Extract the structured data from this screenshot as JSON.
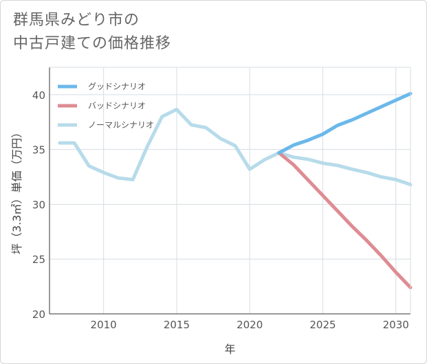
{
  "title_line1": "群馬県みどり市の",
  "title_line2": "中古戸建ての価格推移",
  "chart_data": {
    "type": "line",
    "xlabel": "年",
    "ylabel": "坪（3.3㎡）単価（万円）",
    "xlim": [
      2006.3,
      2031
    ],
    "ylim": [
      20,
      42.5
    ],
    "xticks": [
      2010,
      2015,
      2020,
      2025,
      2030
    ],
    "yticks": [
      20,
      25,
      30,
      35,
      40
    ],
    "grid": true,
    "legend_position": "top-left",
    "series": [
      {
        "name": "グッドシナリオ",
        "color": "#6bb8ea",
        "x": [
          2022,
          2023,
          2024,
          2025,
          2026,
          2027,
          2028,
          2029,
          2030,
          2031
        ],
        "y": [
          34.7,
          35.4,
          35.85,
          36.4,
          37.2,
          37.7,
          38.3,
          38.9,
          39.5,
          40.1
        ]
      },
      {
        "name": "バッドシナリオ",
        "color": "#de8c93",
        "x": [
          2022,
          2023,
          2024,
          2025,
          2026,
          2027,
          2028,
          2029,
          2030,
          2031
        ],
        "y": [
          34.7,
          33.6,
          32.2,
          30.8,
          29.4,
          28.0,
          26.7,
          25.3,
          23.8,
          22.4
        ]
      },
      {
        "name": "ノーマルシナリオ",
        "color": "#b7dbea",
        "x": [
          2007,
          2008,
          2009,
          2010,
          2011,
          2012,
          2013,
          2014,
          2015,
          2016,
          2017,
          2018,
          2019,
          2020,
          2021,
          2022,
          2023,
          2024,
          2025,
          2026,
          2027,
          2028,
          2029,
          2030,
          2031
        ],
        "y": [
          35.6,
          35.6,
          33.5,
          32.9,
          32.4,
          32.25,
          35.3,
          38.0,
          38.65,
          37.25,
          37.0,
          36.0,
          35.35,
          33.2,
          34.05,
          34.7,
          34.3,
          34.1,
          33.75,
          33.55,
          33.2,
          32.9,
          32.5,
          32.25,
          31.8
        ]
      }
    ]
  }
}
